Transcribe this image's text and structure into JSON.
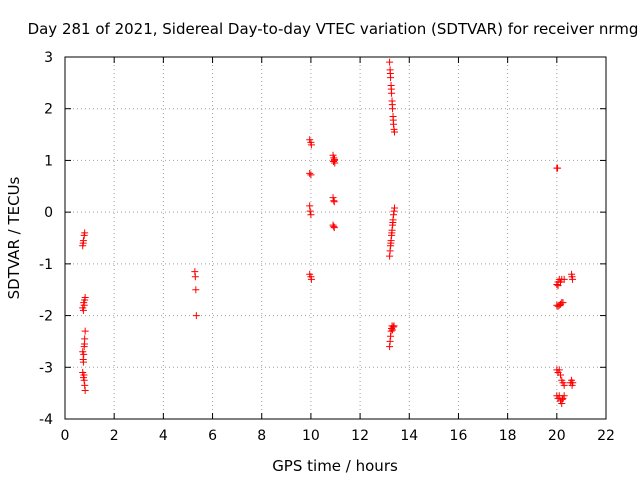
{
  "chart_data": {
    "type": "scatter",
    "title": "Day 281 of 2021, Sidereal Day-to-day VTEC variation (SDTVAR) for receiver nrmg",
    "xlabel": "GPS time / hours",
    "ylabel": "SDTVAR / TECUs",
    "xlim": [
      0,
      22
    ],
    "ylim": [
      -4,
      3
    ],
    "x_ticks": [
      "0",
      "2",
      "4",
      "6",
      "8",
      "10",
      "12",
      "14",
      "16",
      "18",
      "20",
      "22"
    ],
    "y_ticks": [
      "-4",
      "-3",
      "-2",
      "-1",
      "0",
      "1",
      "2",
      "3"
    ],
    "grid": true,
    "marker": "plus",
    "color": "#ff0000",
    "series": [
      {
        "name": "SDTVAR",
        "points": [
          [
            0.72,
            -0.65
          ],
          [
            0.75,
            -0.55
          ],
          [
            0.78,
            -0.45
          ],
          [
            0.8,
            -0.4
          ],
          [
            0.74,
            -0.6
          ],
          [
            0.72,
            -1.85
          ],
          [
            0.75,
            -1.9
          ],
          [
            0.78,
            -1.8
          ],
          [
            0.8,
            -1.7
          ],
          [
            0.82,
            -1.65
          ],
          [
            0.76,
            -1.75
          ],
          [
            0.72,
            -2.7
          ],
          [
            0.74,
            -2.85
          ],
          [
            0.76,
            -2.75
          ],
          [
            0.78,
            -2.6
          ],
          [
            0.8,
            -2.45
          ],
          [
            0.82,
            -2.3
          ],
          [
            0.75,
            -2.9
          ],
          [
            0.79,
            -2.55
          ],
          [
            0.72,
            -3.1
          ],
          [
            0.75,
            -3.2
          ],
          [
            0.78,
            -3.25
          ],
          [
            0.8,
            -3.35
          ],
          [
            0.82,
            -3.45
          ],
          [
            0.77,
            -3.15
          ],
          [
            5.28,
            -1.15
          ],
          [
            5.3,
            -1.25
          ],
          [
            5.32,
            -1.5
          ],
          [
            5.34,
            -2.0
          ],
          [
            9.95,
            1.4
          ],
          [
            10.0,
            1.35
          ],
          [
            10.02,
            1.3
          ],
          [
            9.95,
            0.75
          ],
          [
            10.0,
            0.72
          ],
          [
            9.95,
            0.12
          ],
          [
            9.97,
            0.02
          ],
          [
            10.0,
            -0.05
          ],
          [
            9.95,
            -1.2
          ],
          [
            10.0,
            -1.25
          ],
          [
            10.02,
            -1.3
          ],
          [
            10.9,
            1.1
          ],
          [
            10.93,
            1.05
          ],
          [
            10.95,
            1.0
          ],
          [
            10.97,
            0.95
          ],
          [
            10.92,
            0.98
          ],
          [
            10.96,
            1.02
          ],
          [
            10.9,
            0.28
          ],
          [
            10.93,
            0.22
          ],
          [
            10.95,
            0.2
          ],
          [
            10.9,
            -0.25
          ],
          [
            10.93,
            -0.28
          ],
          [
            10.95,
            -0.3
          ],
          [
            13.2,
            2.9
          ],
          [
            13.22,
            2.75
          ],
          [
            13.24,
            2.6
          ],
          [
            13.26,
            2.45
          ],
          [
            13.28,
            2.3
          ],
          [
            13.3,
            2.15
          ],
          [
            13.32,
            2.0
          ],
          [
            13.34,
            1.85
          ],
          [
            13.36,
            1.7
          ],
          [
            13.38,
            1.6
          ],
          [
            13.4,
            1.55
          ],
          [
            13.23,
            2.68
          ],
          [
            13.27,
            2.38
          ],
          [
            13.31,
            2.08
          ],
          [
            13.35,
            1.78
          ],
          [
            13.2,
            -0.85
          ],
          [
            13.22,
            -0.75
          ],
          [
            13.24,
            -0.65
          ],
          [
            13.26,
            -0.55
          ],
          [
            13.28,
            -0.45
          ],
          [
            13.3,
            -0.35
          ],
          [
            13.32,
            -0.25
          ],
          [
            13.34,
            -0.15
          ],
          [
            13.36,
            -0.05
          ],
          [
            13.38,
            0.02
          ],
          [
            13.4,
            0.08
          ],
          [
            13.25,
            -0.6
          ],
          [
            13.29,
            -0.4
          ],
          [
            13.33,
            -0.2
          ],
          [
            13.2,
            -2.6
          ],
          [
            13.22,
            -2.5
          ],
          [
            13.24,
            -2.4
          ],
          [
            13.26,
            -2.3
          ],
          [
            13.28,
            -2.25
          ],
          [
            13.3,
            -2.2
          ],
          [
            13.32,
            -2.28
          ],
          [
            13.35,
            -2.22
          ],
          [
            13.38,
            -2.2
          ],
          [
            20.0,
            0.85
          ],
          [
            20.03,
            0.85
          ],
          [
            20.0,
            -1.4
          ],
          [
            20.05,
            -1.35
          ],
          [
            20.1,
            -1.3
          ],
          [
            20.15,
            -1.35
          ],
          [
            20.2,
            -1.3
          ],
          [
            20.3,
            -1.3
          ],
          [
            20.05,
            -1.42
          ],
          [
            20.6,
            -1.2
          ],
          [
            20.62,
            -1.25
          ],
          [
            20.64,
            -1.3
          ],
          [
            20.0,
            -1.8
          ],
          [
            20.05,
            -1.82
          ],
          [
            20.1,
            -1.8
          ],
          [
            20.15,
            -1.78
          ],
          [
            20.2,
            -1.75
          ],
          [
            20.25,
            -1.75
          ],
          [
            20.0,
            -3.05
          ],
          [
            20.05,
            -3.1
          ],
          [
            20.1,
            -3.05
          ],
          [
            20.15,
            -3.15
          ],
          [
            20.2,
            -3.25
          ],
          [
            20.25,
            -3.3
          ],
          [
            20.3,
            -3.35
          ],
          [
            20.55,
            -3.3
          ],
          [
            20.6,
            -3.25
          ],
          [
            20.62,
            -3.35
          ],
          [
            20.65,
            -3.3
          ],
          [
            20.0,
            -3.55
          ],
          [
            20.05,
            -3.6
          ],
          [
            20.1,
            -3.55
          ],
          [
            20.15,
            -3.65
          ],
          [
            20.2,
            -3.7
          ],
          [
            20.25,
            -3.6
          ],
          [
            20.3,
            -3.55
          ],
          [
            20.22,
            -3.62
          ]
        ]
      }
    ]
  }
}
